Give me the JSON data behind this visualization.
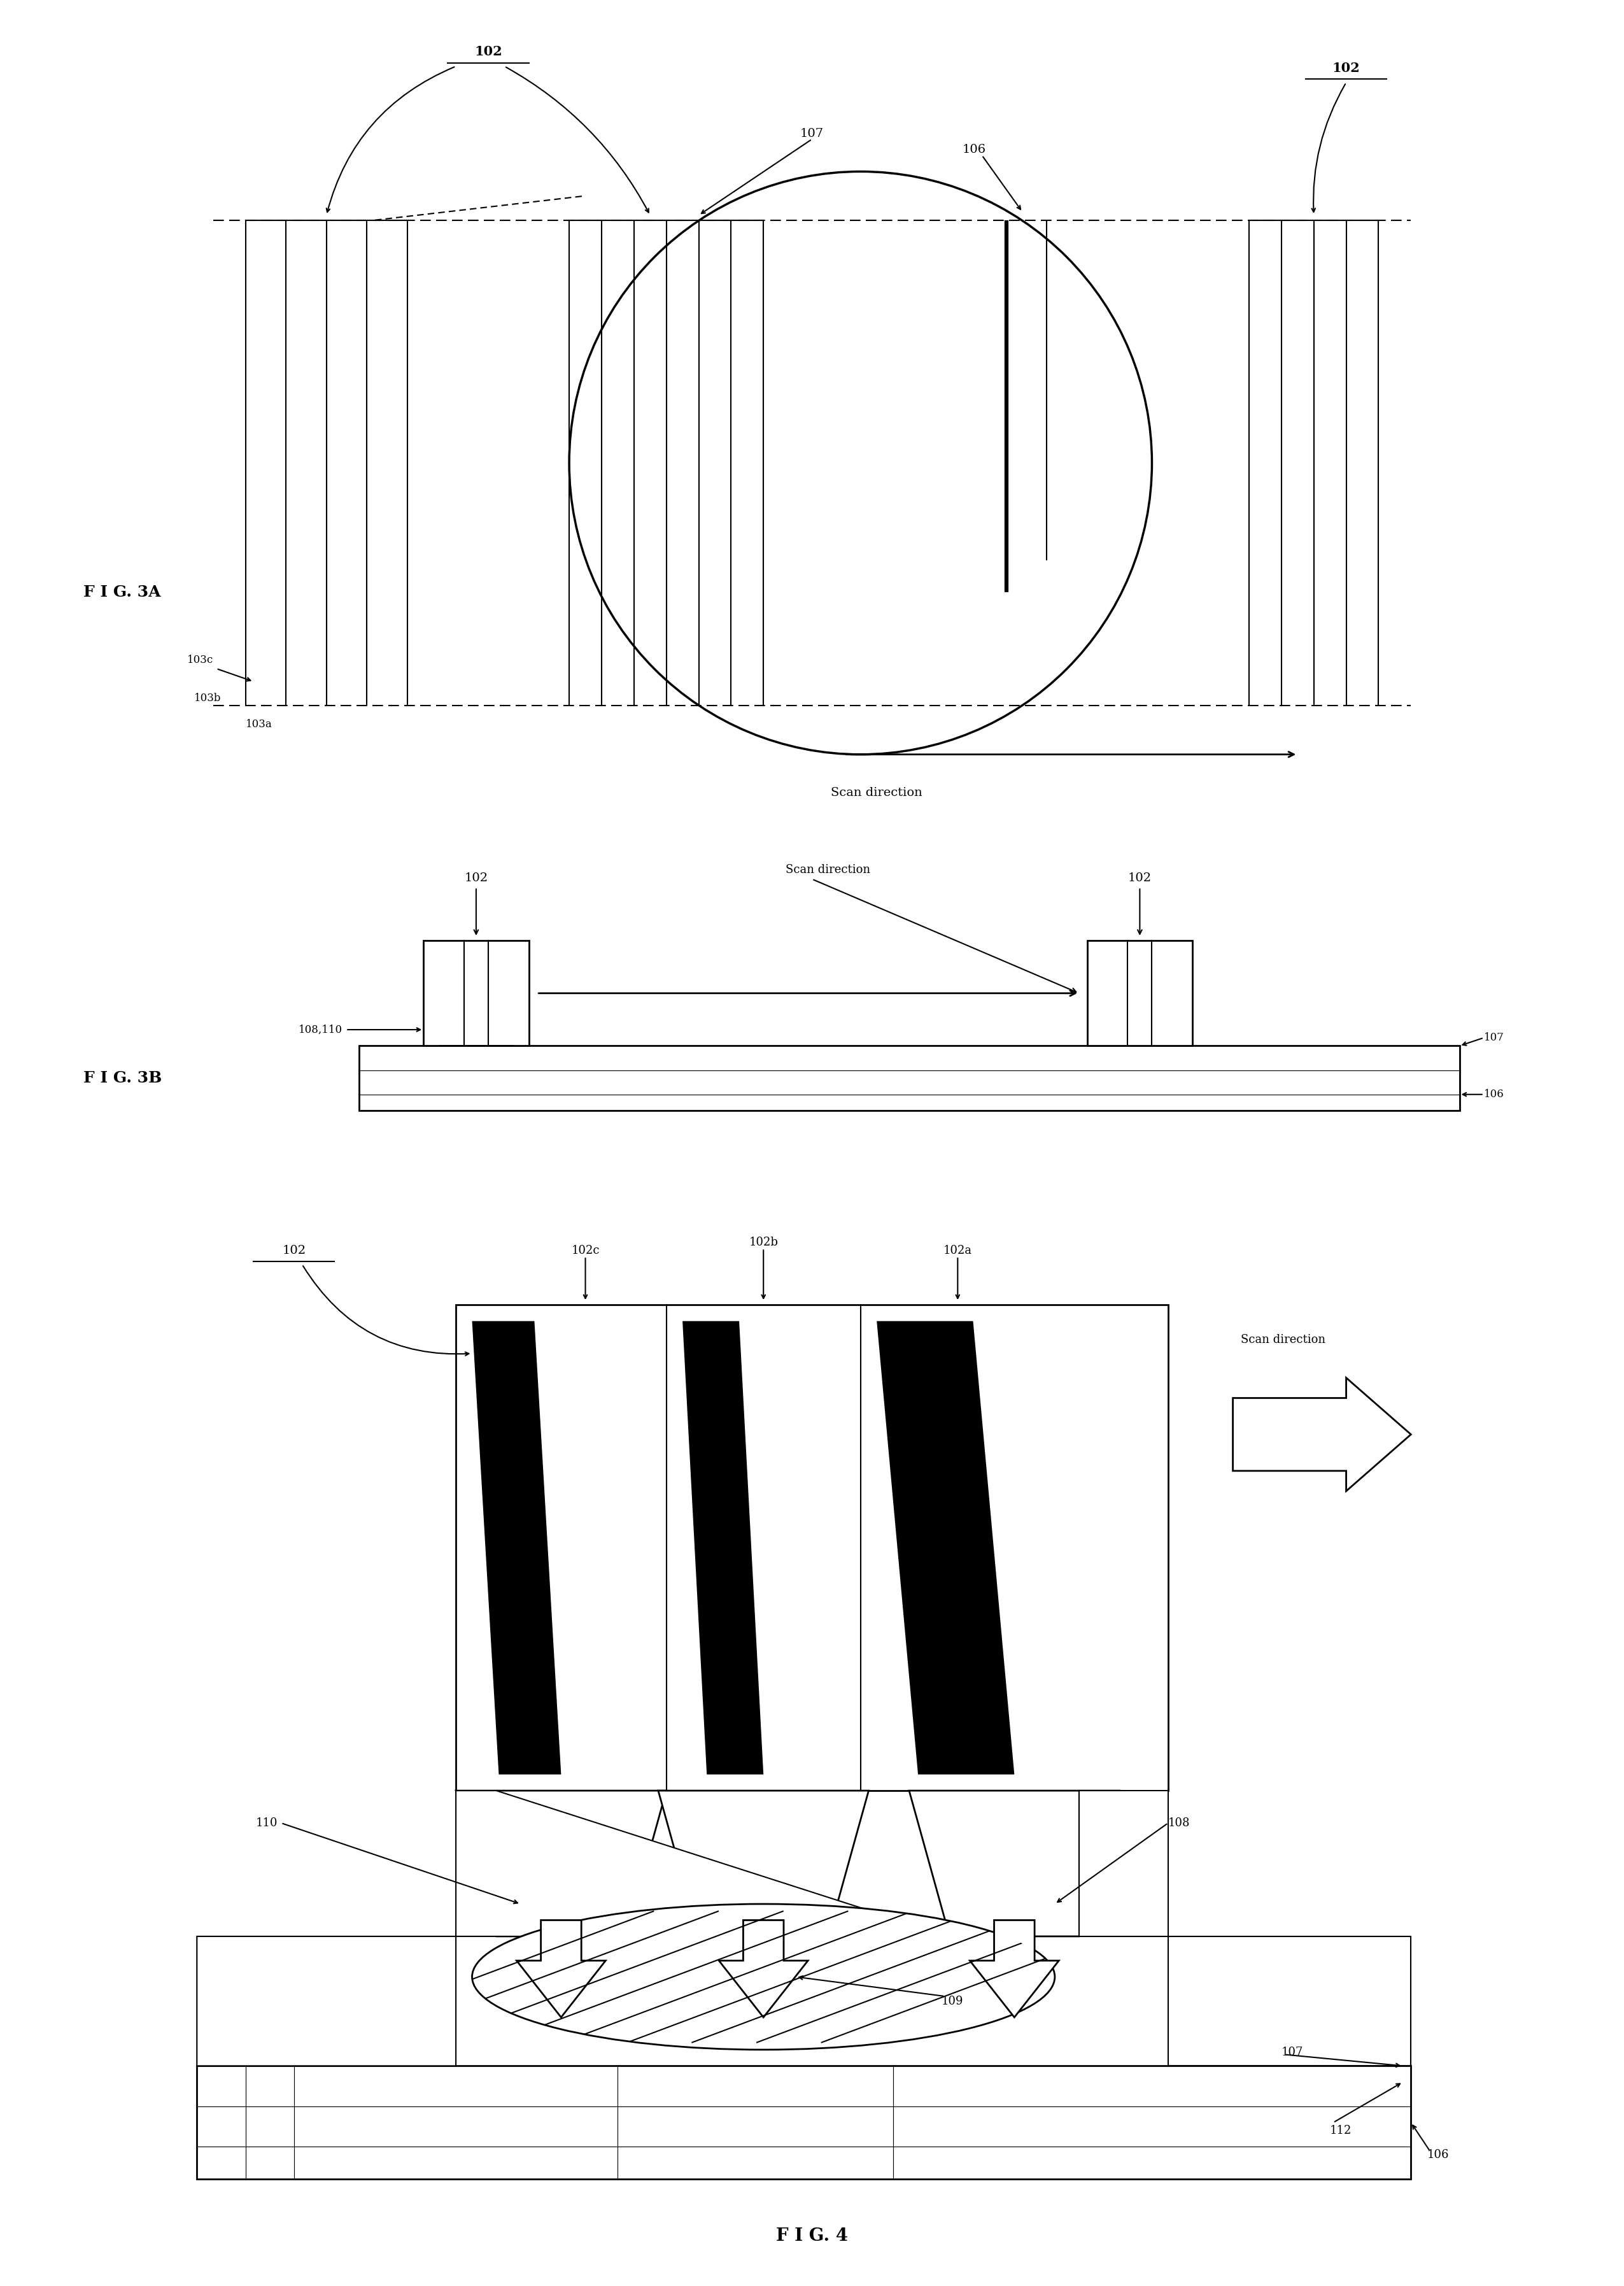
{
  "fig_width": 25.51,
  "fig_height": 35.9,
  "bg_color": "#ffffff",
  "line_color": "#000000",
  "fig3a_label": "F I G. 3A",
  "fig3b_label": "F I G. 3B",
  "fig4_label": "F I G. 4",
  "labels": {
    "102_top": "102",
    "102_right": "102",
    "107_3a": "107",
    "106_3a": "106",
    "103c": "103c",
    "103b": "103b",
    "103a": "103a",
    "scan_dir_3a": "Scan direction",
    "102_3b_left": "102",
    "102_3b_right": "102",
    "108_110": "108,110",
    "scan_dir_3b": "Scan direction",
    "107_3b": "107",
    "106_3b": "106",
    "102_4": "102",
    "102a": "102a",
    "102b": "102b",
    "102c": "102c",
    "scan_dir_4": "Scan direction",
    "110_4": "110",
    "108_4": "108",
    "109_4": "109",
    "107_4": "107",
    "112_4": "112",
    "106_4": "106"
  }
}
